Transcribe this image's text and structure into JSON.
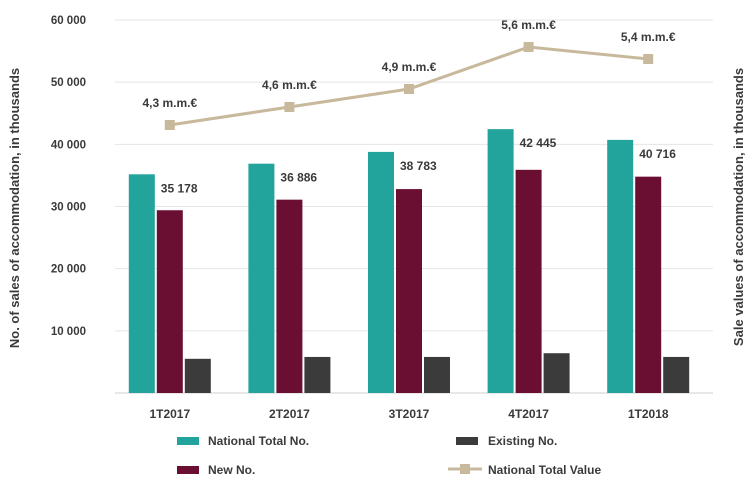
{
  "chart_data": {
    "type": "bar",
    "categories": [
      "1T2017",
      "2T2017",
      "3T2017",
      "4T2017",
      "1T2018"
    ],
    "series": [
      {
        "name": "National Total No.",
        "values": [
          35178,
          36886,
          38783,
          42445,
          40716
        ],
        "color": "#22a39b",
        "labels": [
          "35 178",
          "36 886",
          "38 783",
          "42 445",
          "40 716"
        ]
      },
      {
        "name": "New No.",
        "values": [
          29400,
          31100,
          32800,
          35900,
          34800
        ],
        "color": "#6b0f32"
      },
      {
        "name": "Existing No.",
        "values": [
          5500,
          5800,
          5800,
          6400,
          5800
        ],
        "color": "#3b3b3b"
      }
    ],
    "line_series": {
      "name": "National Total Value",
      "values": [
        4.3,
        4.6,
        4.9,
        5.6,
        5.4
      ],
      "labels": [
        "4,3 m.m.€",
        "4,6 m.m.€",
        "4,9 m.m.€",
        "5,6 m.m.€",
        "5,4 m.m.€"
      ],
      "color": "#c8b99c"
    },
    "ylabel": "No. of sales of accommodation, in thousands",
    "y2label": "Sale values of accommodation, in thousands",
    "ylim": [
      0,
      60000
    ],
    "yticks": [
      10000,
      20000,
      30000,
      40000,
      50000,
      60000
    ],
    "ytick_labels": [
      "10 000",
      "20 000",
      "30 000",
      "40 000",
      "50 000",
      "60 000"
    ],
    "grid": true,
    "legend_position": "bottom"
  }
}
